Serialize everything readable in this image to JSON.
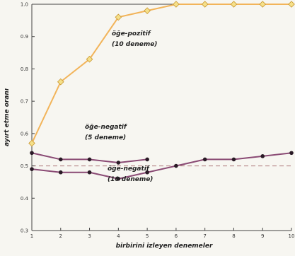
{
  "chart_data": {
    "type": "line",
    "x": [
      1,
      2,
      3,
      4,
      5,
      6,
      7,
      8,
      9,
      10
    ],
    "xlabel": "birbirini izleyen denemeler",
    "ylabel": "ayırt etme oranı",
    "xlim": [
      1,
      10
    ],
    "ylim": [
      0.3,
      1.0
    ],
    "xticks": [
      "1",
      "2",
      "3",
      "4",
      "5",
      "6",
      "7",
      "8",
      "9",
      "10"
    ],
    "yticks": [
      "0.3",
      "0.4",
      "0.5",
      "0.6",
      "0.7",
      "0.8",
      "0.9",
      "1.0"
    ],
    "reference_line": 0.5,
    "series": [
      {
        "name": "öğe-pozitif (10 deneme)",
        "label_lines": [
          "öğe-pozitif",
          "(10 deneme)"
        ],
        "color": "#f2b45a",
        "marker": "diamond",
        "x": [
          1,
          2,
          3,
          4,
          5,
          6,
          7,
          8,
          9,
          10
        ],
        "values": [
          0.57,
          0.76,
          0.83,
          0.96,
          0.98,
          1.0,
          1.0,
          1.0,
          1.0,
          1.0
        ]
      },
      {
        "name": "öğe-negatif (5 deneme)",
        "label_lines": [
          "öğe-negatif",
          "(5 deneme)"
        ],
        "color": "#8a4a74",
        "marker": "circle",
        "x": [
          1,
          2,
          3,
          4,
          5
        ],
        "values": [
          0.54,
          0.52,
          0.52,
          0.51,
          0.52
        ]
      },
      {
        "name": "öğe-negatif (10 deneme)",
        "label_lines": [
          "öğe-negatif",
          "(10 deneme)"
        ],
        "color": "#8a4a74",
        "marker": "circle",
        "x": [
          1,
          2,
          3,
          4,
          5,
          6,
          7,
          8,
          9,
          10
        ],
        "values": [
          0.49,
          0.48,
          0.48,
          0.46,
          0.48,
          0.5,
          0.52,
          0.52,
          0.53,
          0.54
        ]
      }
    ]
  }
}
